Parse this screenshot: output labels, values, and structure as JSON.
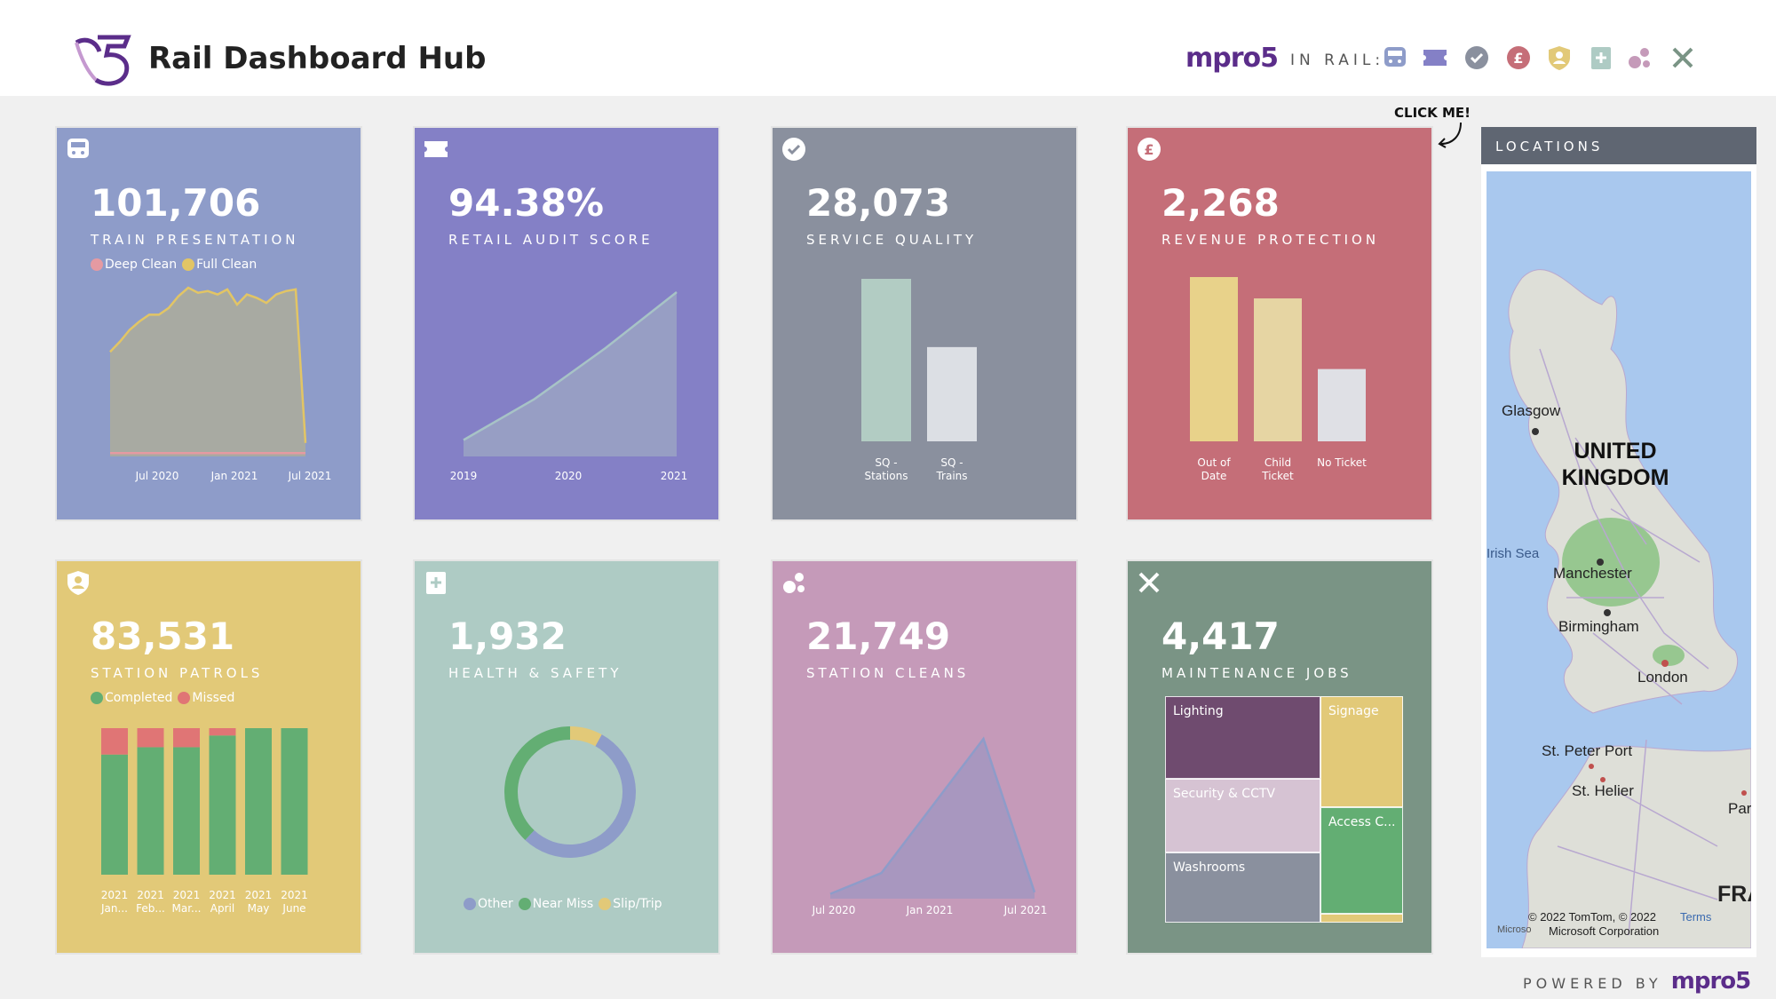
{
  "header": {
    "title": "Rail Dashboard Hub",
    "brand": "mpro5",
    "in_rail": "IN RAIL:",
    "nav_icons": [
      "train-icon",
      "ticket-icon",
      "check-icon",
      "pound-icon",
      "shield-user-icon",
      "first-aid-icon",
      "bubbles-icon",
      "tools-icon"
    ],
    "click_me": "CLICK ME!"
  },
  "colors": {
    "train": "#8e9cc9",
    "retail": "#8480c6",
    "service": "#8a909e",
    "revenue": "#c56e78",
    "patrols": "#e2c978",
    "health": "#aecbc4",
    "cleans": "#c59ab9",
    "maintenance": "#7a9485"
  },
  "cards": {
    "train": {
      "value": "101,706",
      "label": "TRAIN PRESENTATION",
      "legend": [
        "Deep Clean",
        "Full Clean"
      ],
      "legend_colors": [
        "#e59aa2",
        "#e2c565"
      ],
      "chart_data": {
        "type": "area",
        "x_ticks": [
          "Jul 2020",
          "Jan 2021",
          "Jul 2021"
        ],
        "series": [
          {
            "name": "Full Clean",
            "values": [
              62,
              68,
              75,
              80,
              84,
              84,
              88,
              95,
              100,
              97,
              98,
              96,
              99,
              90,
              96,
              94,
              91,
              96,
              98,
              99,
              8
            ]
          },
          {
            "name": "Deep Clean",
            "values": [
              2,
              2,
              2,
              2,
              2,
              2,
              2,
              2,
              2,
              2,
              2,
              2,
              2,
              2,
              2,
              2,
              2,
              2,
              2,
              2,
              2
            ]
          }
        ]
      }
    },
    "retail": {
      "value": "94.38%",
      "label": "RETAIL AUDIT SCORE",
      "chart_data": {
        "type": "area",
        "x_ticks": [
          "2019",
          "2020",
          "2021"
        ],
        "values": [
          10,
          35,
          66,
          100
        ]
      }
    },
    "service": {
      "value": "28,073",
      "label": "SERVICE QUALITY",
      "chart_data": {
        "type": "bar",
        "categories": [
          "SQ - Stations",
          "SQ - Trains"
        ],
        "category_lines": [
          [
            "SQ -",
            "Stations"
          ],
          [
            "SQ -",
            "Trains"
          ]
        ],
        "values": [
          100,
          58
        ],
        "colors": [
          "#b2ccc3",
          "#dcdfe4"
        ]
      }
    },
    "revenue": {
      "value": "2,268",
      "label": "REVENUE PROTECTION",
      "chart_data": {
        "type": "bar",
        "categories": [
          "Out of Date",
          "Child Ticket",
          "No Ticket"
        ],
        "category_lines": [
          [
            "Out of",
            "Date"
          ],
          [
            "Child",
            "Ticket"
          ],
          [
            "No Ticket"
          ]
        ],
        "values": [
          100,
          87,
          44
        ],
        "colors": [
          "#e8d28a",
          "#e6d5a3",
          "#dfe0e5"
        ]
      }
    },
    "patrols": {
      "value": "83,531",
      "label": "STATION PATROLS",
      "legend": [
        "Completed",
        "Missed"
      ],
      "legend_colors": [
        "#63ae73",
        "#e07575"
      ],
      "chart_data": {
        "type": "bar",
        "stacked": true,
        "categories": [
          "2021 Jan...",
          "2021 Feb...",
          "2021 Mar...",
          "2021 April",
          "2021 May",
          "2021 June"
        ],
        "category_lines": [
          [
            "2021",
            "Jan..."
          ],
          [
            "2021",
            "Feb..."
          ],
          [
            "2021",
            "Mar..."
          ],
          [
            "2021",
            "April"
          ],
          [
            "2021",
            "May"
          ],
          [
            "2021",
            "June"
          ]
        ],
        "series": [
          {
            "name": "Completed",
            "values": [
              82,
              87,
              87,
              95,
              100,
              100
            ]
          },
          {
            "name": "Missed",
            "values": [
              18,
              13,
              13,
              5,
              0,
              0
            ]
          }
        ]
      }
    },
    "health": {
      "value": "1,932",
      "label": "HEALTH & SAFETY",
      "legend": [
        "Other",
        "Near Miss",
        "Slip/Trip"
      ],
      "legend_colors": [
        "#8e9cc9",
        "#63ae73",
        "#e2c978"
      ],
      "chart_data": {
        "type": "pie",
        "donut": true,
        "labels": [
          "Other",
          "Near Miss",
          "Slip/Trip"
        ],
        "values": [
          54,
          38,
          8
        ]
      }
    },
    "cleans": {
      "value": "21,749",
      "label": "STATION CLEANS",
      "chart_data": {
        "type": "area",
        "x_ticks": [
          "Jul 2020",
          "Jan 2021",
          "Jul 2021"
        ],
        "values": [
          3,
          16,
          58,
          100,
          4
        ]
      }
    },
    "maintenance": {
      "value": "4,417",
      "label": "MAINTENANCE JOBS",
      "chart_data": {
        "type": "treemap",
        "labels": [
          "Lighting",
          "Security & CCTV",
          "Washrooms",
          "Signage",
          "Access C..."
        ]
      }
    }
  },
  "map": {
    "header": "LOCATIONS",
    "labels": [
      "Glasgow",
      "Manchester",
      "Birmingham",
      "London",
      "St. Peter Port",
      "St. Helier",
      "Irish Sea",
      "Par",
      "FRA"
    ],
    "country": "UNITED KINGDOM",
    "attribution": "© 2022 TomTom, © 2022",
    "attribution2": "Microsoft Corporation",
    "terms": "Terms",
    "ms_left": "Microso"
  },
  "footer": {
    "powered_by": "POWERED BY",
    "brand": "mpro5"
  }
}
